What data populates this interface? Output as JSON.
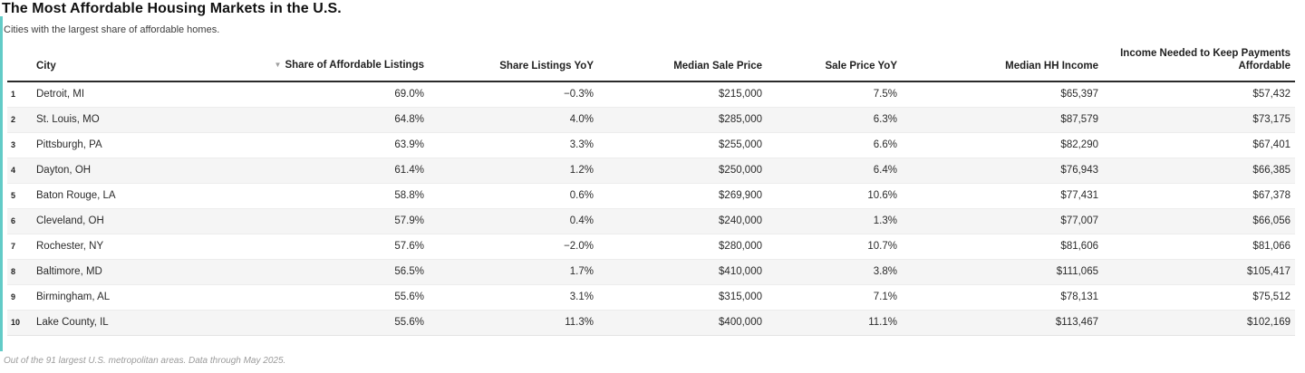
{
  "colors": {
    "accent_teal": "#62cbc7",
    "stripe_gray": "#f5f5f5",
    "header_rule": "#2a2a2a"
  },
  "ui": {
    "sort_indicator": "▼"
  },
  "chart_data": {
    "type": "table",
    "title": "The Most Affordable Housing Markets in the U.S.",
    "subtitle": "Cities with the largest share of affordable homes.",
    "footnote": "Out of the 91 largest U.S. metropolitan areas. Data through May 2025.",
    "sorted_column": "Share of Affordable Listings",
    "columns": [
      {
        "key": "rank",
        "label": ""
      },
      {
        "key": "city",
        "label": "City"
      },
      {
        "key": "share",
        "label": "Share of Affordable Listings"
      },
      {
        "key": "share_yoy",
        "label": "Share Listings YoY"
      },
      {
        "key": "median_sale_price",
        "label": "Median Sale Price"
      },
      {
        "key": "sale_price_yoy",
        "label": "Sale Price YoY"
      },
      {
        "key": "median_hh_income",
        "label": "Median HH Income"
      },
      {
        "key": "income_needed",
        "label": "Income Needed to Keep Payments Affordable"
      }
    ],
    "rows": [
      {
        "rank": "1",
        "city": "Detroit, MI",
        "share": "69.0%",
        "share_yoy": "−0.3%",
        "median_sale_price": "$215,000",
        "sale_price_yoy": "7.5%",
        "median_hh_income": "$65,397",
        "income_needed": "$57,432"
      },
      {
        "rank": "2",
        "city": "St. Louis, MO",
        "share": "64.8%",
        "share_yoy": "4.0%",
        "median_sale_price": "$285,000",
        "sale_price_yoy": "6.3%",
        "median_hh_income": "$87,579",
        "income_needed": "$73,175"
      },
      {
        "rank": "3",
        "city": "Pittsburgh, PA",
        "share": "63.9%",
        "share_yoy": "3.3%",
        "median_sale_price": "$255,000",
        "sale_price_yoy": "6.6%",
        "median_hh_income": "$82,290",
        "income_needed": "$67,401"
      },
      {
        "rank": "4",
        "city": "Dayton, OH",
        "share": "61.4%",
        "share_yoy": "1.2%",
        "median_sale_price": "$250,000",
        "sale_price_yoy": "6.4%",
        "median_hh_income": "$76,943",
        "income_needed": "$66,385"
      },
      {
        "rank": "5",
        "city": "Baton Rouge, LA",
        "share": "58.8%",
        "share_yoy": "0.6%",
        "median_sale_price": "$269,900",
        "sale_price_yoy": "10.6%",
        "median_hh_income": "$77,431",
        "income_needed": "$67,378"
      },
      {
        "rank": "6",
        "city": "Cleveland, OH",
        "share": "57.9%",
        "share_yoy": "0.4%",
        "median_sale_price": "$240,000",
        "sale_price_yoy": "1.3%",
        "median_hh_income": "$77,007",
        "income_needed": "$66,056"
      },
      {
        "rank": "7",
        "city": "Rochester, NY",
        "share": "57.6%",
        "share_yoy": "−2.0%",
        "median_sale_price": "$280,000",
        "sale_price_yoy": "10.7%",
        "median_hh_income": "$81,606",
        "income_needed": "$81,066"
      },
      {
        "rank": "8",
        "city": "Baltimore, MD",
        "share": "56.5%",
        "share_yoy": "1.7%",
        "median_sale_price": "$410,000",
        "sale_price_yoy": "3.8%",
        "median_hh_income": "$111,065",
        "income_needed": "$105,417"
      },
      {
        "rank": "9",
        "city": "Birmingham, AL",
        "share": "55.6%",
        "share_yoy": "3.1%",
        "median_sale_price": "$315,000",
        "sale_price_yoy": "7.1%",
        "median_hh_income": "$78,131",
        "income_needed": "$75,512"
      },
      {
        "rank": "10",
        "city": "Lake County, IL",
        "share": "55.6%",
        "share_yoy": "11.3%",
        "median_sale_price": "$400,000",
        "sale_price_yoy": "11.1%",
        "median_hh_income": "$113,467",
        "income_needed": "$102,169"
      }
    ]
  }
}
